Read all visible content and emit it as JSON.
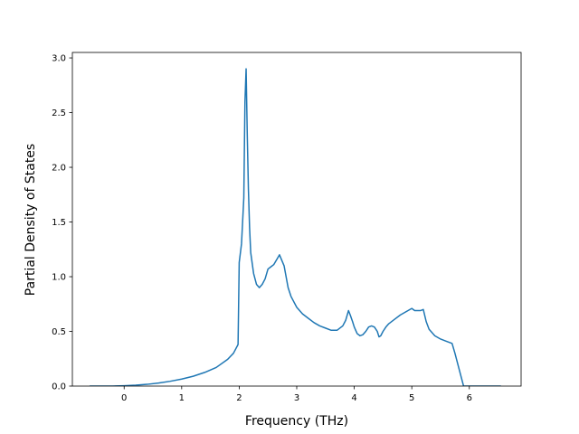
{
  "chart_data": {
    "type": "line",
    "xlabel": "Frequency (THz)",
    "ylabel": "Partial Density of States",
    "xlim": [
      -0.9,
      6.9
    ],
    "ylim": [
      0,
      3.05
    ],
    "xticks": [
      0,
      1,
      2,
      3,
      4,
      5,
      6
    ],
    "yticks": [
      0.0,
      0.5,
      1.0,
      1.5,
      2.0,
      2.5,
      3.0
    ],
    "xtick_labels": [
      "0",
      "1",
      "2",
      "3",
      "4",
      "5",
      "6"
    ],
    "ytick_labels": [
      "0.0",
      "0.5",
      "1.0",
      "1.5",
      "2.0",
      "2.5",
      "3.0"
    ],
    "grid": false,
    "legend": "none",
    "line_color": "#1f77b4",
    "series": [
      {
        "x": [
          -0.6,
          -0.2,
          0.0,
          0.2,
          0.4,
          0.6,
          0.8,
          1.0,
          1.2,
          1.4,
          1.6,
          1.8,
          1.9,
          1.98,
          2.0,
          2.04,
          2.08,
          2.1,
          2.12,
          2.14,
          2.16,
          2.18,
          2.2,
          2.25,
          2.3,
          2.35,
          2.4,
          2.45,
          2.5,
          2.55,
          2.6,
          2.7,
          2.78,
          2.85,
          2.9,
          3.0,
          3.1,
          3.2,
          3.3,
          3.4,
          3.5,
          3.6,
          3.7,
          3.8,
          3.85,
          3.9,
          3.93,
          3.97,
          4.0,
          4.05,
          4.1,
          4.15,
          4.2,
          4.25,
          4.3,
          4.35,
          4.4,
          4.43,
          4.46,
          4.5,
          4.55,
          4.6,
          4.7,
          4.8,
          4.9,
          5.0,
          5.05,
          5.1,
          5.15,
          5.2,
          5.25,
          5.3,
          5.35,
          5.4,
          5.5,
          5.6,
          5.7,
          5.75,
          5.8,
          5.85,
          5.9,
          5.95,
          6.0,
          6.2,
          6.55
        ],
        "y": [
          0.0,
          0.0,
          0.003,
          0.008,
          0.016,
          0.028,
          0.044,
          0.064,
          0.09,
          0.125,
          0.17,
          0.245,
          0.3,
          0.38,
          1.13,
          1.3,
          1.72,
          2.6,
          2.9,
          2.3,
          1.8,
          1.45,
          1.22,
          1.03,
          0.93,
          0.9,
          0.93,
          0.98,
          1.07,
          1.09,
          1.11,
          1.2,
          1.1,
          0.9,
          0.82,
          0.72,
          0.66,
          0.62,
          0.58,
          0.55,
          0.53,
          0.51,
          0.51,
          0.55,
          0.6,
          0.69,
          0.65,
          0.59,
          0.54,
          0.48,
          0.46,
          0.47,
          0.5,
          0.54,
          0.55,
          0.54,
          0.5,
          0.45,
          0.46,
          0.5,
          0.54,
          0.57,
          0.61,
          0.65,
          0.68,
          0.71,
          0.69,
          0.69,
          0.69,
          0.7,
          0.59,
          0.52,
          0.49,
          0.46,
          0.43,
          0.41,
          0.39,
          0.3,
          0.2,
          0.1,
          0.0,
          0.0,
          0.0,
          0.0,
          0.0
        ]
      }
    ]
  }
}
